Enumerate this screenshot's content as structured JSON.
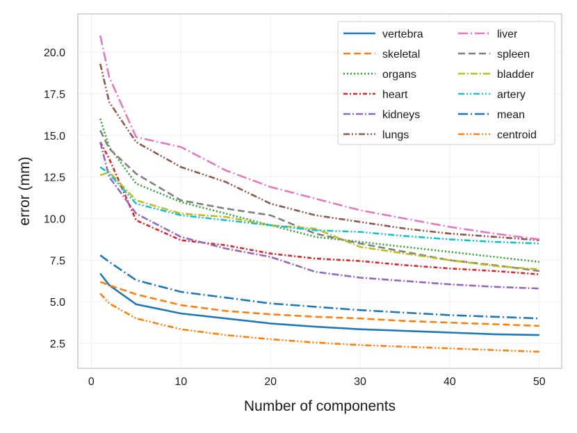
{
  "chart_data": {
    "type": "line",
    "title": "",
    "xlabel": "Number of components",
    "ylabel": "error (mm)",
    "xlim": [
      -1.5,
      52.5
    ],
    "ylim": [
      1.0,
      22.3
    ],
    "xticks": [
      0,
      10,
      20,
      30,
      40,
      50
    ],
    "xtick_labels": [
      "0",
      "10",
      "20",
      "30",
      "40",
      "50"
    ],
    "yticks": [
      2.5,
      5.0,
      7.5,
      10.0,
      12.5,
      15.0,
      17.5,
      20.0
    ],
    "ytick_labels": [
      "2.5",
      "5.0",
      "7.5",
      "10.0",
      "12.5",
      "15.0",
      "17.5",
      "20.0"
    ],
    "grid": true,
    "legend_position": "top-right",
    "x": [
      1,
      2,
      5,
      10,
      15,
      20,
      25,
      30,
      35,
      40,
      45,
      50
    ],
    "series": [
      {
        "name": "vertebra",
        "color": "#1f77b4",
        "dash": "solid",
        "values": [
          6.7,
          6.0,
          4.85,
          4.3,
          4.0,
          3.7,
          3.5,
          3.35,
          3.25,
          3.15,
          3.05,
          3.0
        ]
      },
      {
        "name": "skeletal",
        "color": "#ff7f0e",
        "dash": "dashed",
        "values": [
          6.2,
          6.0,
          5.45,
          4.8,
          4.45,
          4.25,
          4.1,
          4.0,
          3.85,
          3.75,
          3.65,
          3.55
        ]
      },
      {
        "name": "organs",
        "color": "#2ca02c",
        "dash": "dotted",
        "values": [
          16.0,
          14.3,
          12.1,
          11.0,
          10.3,
          9.6,
          8.9,
          8.6,
          8.3,
          8.0,
          7.7,
          7.4
        ]
      },
      {
        "name": "heart",
        "color": "#d62728",
        "dash": "dashdot-dense",
        "values": [
          14.6,
          13.6,
          9.9,
          8.7,
          8.4,
          7.9,
          7.6,
          7.45,
          7.2,
          7.0,
          6.85,
          6.65
        ]
      },
      {
        "name": "kidneys",
        "color": "#9467bd",
        "dash": "dashdot",
        "values": [
          14.6,
          12.5,
          10.3,
          8.9,
          8.2,
          7.7,
          6.8,
          6.45,
          6.25,
          6.05,
          5.9,
          5.8
        ]
      },
      {
        "name": "lungs",
        "color": "#8c564b",
        "dash": "dashdotdot",
        "values": [
          19.3,
          17.0,
          14.6,
          13.1,
          12.2,
          10.9,
          10.2,
          9.8,
          9.4,
          9.1,
          8.9,
          8.7
        ]
      },
      {
        "name": "liver",
        "color": "#e377c2",
        "dash": "dashdot-long",
        "values": [
          21.0,
          18.5,
          14.9,
          14.3,
          12.9,
          11.9,
          11.2,
          10.5,
          10.0,
          9.5,
          9.1,
          8.75
        ]
      },
      {
        "name": "spleen",
        "color": "#7f7f7f",
        "dash": "dashed",
        "values": [
          15.3,
          14.2,
          12.7,
          11.1,
          10.6,
          10.2,
          9.1,
          8.5,
          8.0,
          7.5,
          7.2,
          6.85
        ]
      },
      {
        "name": "bladder",
        "color": "#bcbd22",
        "dash": "dashdot",
        "values": [
          12.6,
          12.8,
          11.1,
          10.3,
          10.1,
          9.6,
          9.4,
          8.3,
          7.9,
          7.5,
          7.15,
          6.95
        ]
      },
      {
        "name": "artery",
        "color": "#17becf",
        "dash": "dashdotdot",
        "values": [
          13.1,
          12.7,
          10.9,
          10.2,
          9.9,
          9.6,
          9.3,
          9.2,
          8.95,
          8.75,
          8.6,
          8.5
        ]
      },
      {
        "name": "mean",
        "color": "#1f77b4",
        "dash": "dashdot-long",
        "values": [
          7.8,
          7.4,
          6.3,
          5.6,
          5.25,
          4.9,
          4.7,
          4.5,
          4.35,
          4.2,
          4.1,
          4.0
        ]
      },
      {
        "name": "centroid",
        "color": "#ff7f0e",
        "dash": "dashdotdot",
        "values": [
          5.5,
          4.9,
          4.0,
          3.35,
          3.0,
          2.75,
          2.55,
          2.4,
          2.3,
          2.2,
          2.1,
          2.0
        ]
      }
    ]
  }
}
